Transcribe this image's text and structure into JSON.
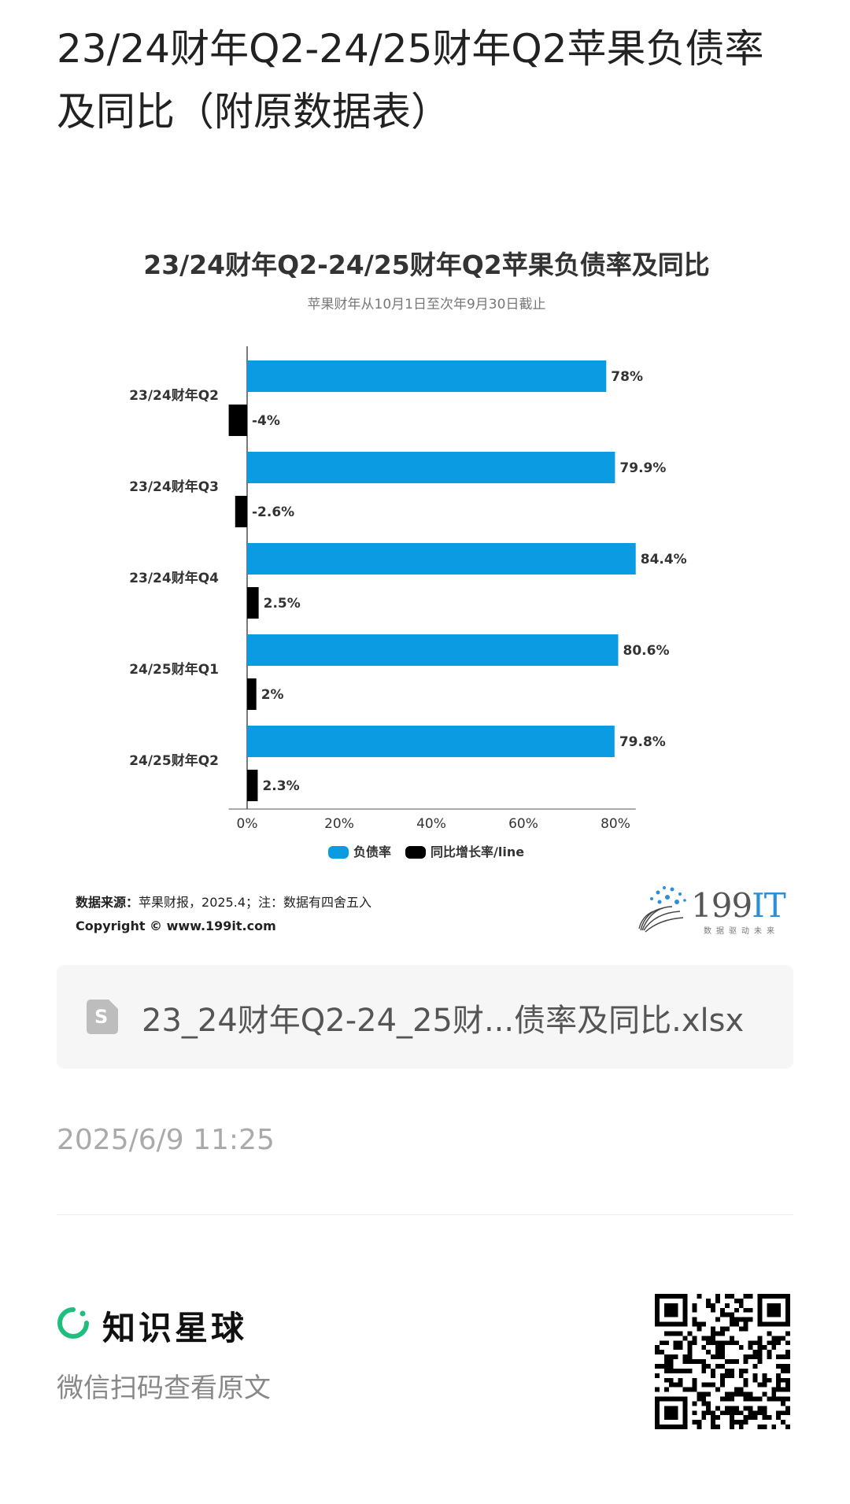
{
  "page": {
    "title": "23/24财年Q2-24/25财年Q2苹果负债率及同比（附原数据表）"
  },
  "chart_card": {
    "source_label": "数据来源：",
    "source_text": "苹果财报，2025.4；注：数据有四舍五入",
    "copyright": "Copyright © www.199it.com",
    "logo_text": "199",
    "logo_text_it": "IT",
    "logo_tagline": "数据驱动未来"
  },
  "chart_data": {
    "type": "bar",
    "orientation": "horizontal",
    "title": "23/24财年Q2-24/25财年Q2苹果负债率及同比",
    "subtitle": "苹果财年从10月1日至次年9月30日截止",
    "categories": [
      "23/24财年Q2",
      "23/24财年Q3",
      "23/24财年Q4",
      "24/25财年Q1",
      "24/25财年Q2"
    ],
    "series": [
      {
        "name": "负债率",
        "values": [
          78,
          79.9,
          84.4,
          80.6,
          79.8
        ],
        "labels": [
          "78%",
          "79.9%",
          "84.4%",
          "80.6%",
          "79.8%"
        ],
        "color": "#0a9be3"
      },
      {
        "name": "同比增长率/line",
        "values": [
          -4,
          -2.6,
          2.5,
          2,
          2.3
        ],
        "labels": [
          "-4%",
          "-2.6%",
          "2.5%",
          "2%",
          "2.3%"
        ],
        "color": "#000000"
      }
    ],
    "xticks": [
      "0%",
      "20%",
      "40%",
      "60%",
      "80%"
    ],
    "xlim": [
      -4,
      84.4
    ],
    "grid": false,
    "legend": "bottom-center"
  },
  "file": {
    "icon": "sheet-file-icon",
    "icon_glyph": "S",
    "name": "23_24财年Q2-24_25财...债率及同比.xlsx"
  },
  "meta": {
    "timestamp": "2025/6/9 11:25"
  },
  "footer": {
    "brand_icon": "zsxq-logo-icon",
    "brand_name": "知识星球",
    "scan_hint": "微信扫码查看原文",
    "accent": "#1ebe7e"
  }
}
